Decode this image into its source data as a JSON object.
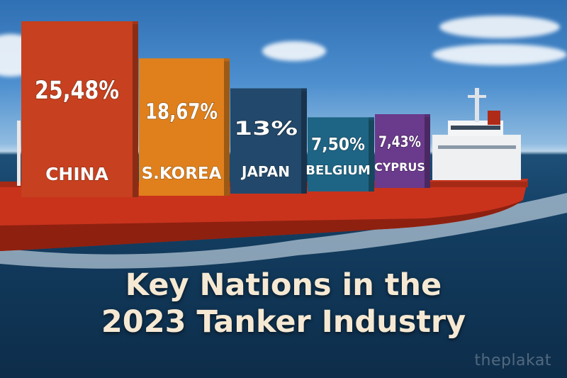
{
  "chart_data": {
    "type": "bar",
    "categories": [
      "CHINA",
      "S.KOREA",
      "JAPAN",
      "BELGIUM",
      "CYPRUS"
    ],
    "values": [
      25.48,
      18.67,
      13,
      7.5,
      7.43
    ],
    "value_labels": [
      "25,48%",
      "18,67%",
      "13%",
      "7,50%",
      "7,43%"
    ],
    "colors": [
      "#c7401f",
      "#e0801c",
      "#22496b",
      "#1e6585",
      "#6a3a8c"
    ],
    "title": "Key Nations in the 2023 Tanker Industry",
    "xlabel": "",
    "ylabel": "",
    "ylim": [
      0,
      25.48
    ],
    "grid": false,
    "legend": "none"
  },
  "title_lines": [
    "Key Nations in the",
    "2023 Tanker Industry"
  ],
  "watermark": "theplakat",
  "colors": {
    "sea": "#133d60",
    "hull": "#c9331c",
    "title_text": "#f6e9d3"
  }
}
